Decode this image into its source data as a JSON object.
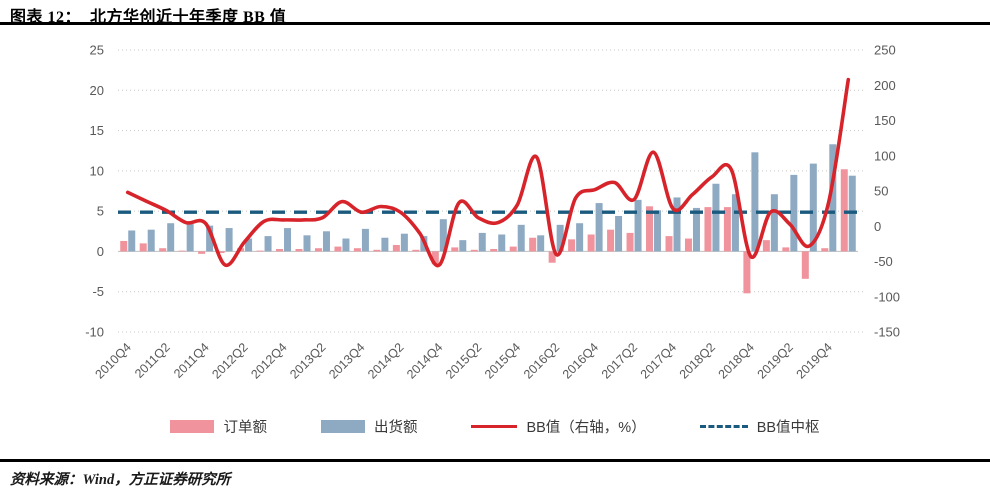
{
  "header": {
    "title": "图表 12：  北方华创近十年季度 BB 值"
  },
  "legend": {
    "items": [
      {
        "label": "订单额",
        "swatch": "bar",
        "color": "#f0939c"
      },
      {
        "label": "出货额",
        "swatch": "bar",
        "color": "#8ea9c2"
      },
      {
        "label": "BB值（右轴，%）",
        "swatch": "line",
        "color": "#d7242b"
      },
      {
        "label": "BB值中枢",
        "swatch": "dash",
        "color": "#1a5a7e"
      }
    ]
  },
  "footer": {
    "source": "资料来源：Wind，方正证券研究所"
  },
  "colors": {
    "order_bar": "#f0939c",
    "shipment_bar": "#8ea9c2",
    "bb_line": "#d7242b",
    "bb_center": "#1a5a7e",
    "axis_text": "#595959",
    "gridline": "#c8c8c8"
  },
  "chart_data": {
    "type": "bar+line combo, dual axis",
    "title": "北方华创近十年季度BB值",
    "categories": [
      "2010Q4",
      "2011Q1",
      "2011Q2",
      "2011Q3",
      "2011Q4",
      "2012Q1",
      "2012Q2",
      "2012Q3",
      "2012Q4",
      "2013Q1",
      "2013Q2",
      "2013Q3",
      "2013Q4",
      "2014Q1",
      "2014Q2",
      "2014Q3",
      "2014Q4",
      "2015Q1",
      "2015Q2",
      "2015Q3",
      "2015Q4",
      "2016Q1",
      "2016Q2",
      "2016Q3",
      "2016Q4",
      "2017Q1",
      "2017Q2",
      "2017Q3",
      "2017Q4",
      "2018Q1",
      "2018Q2",
      "2018Q3",
      "2018Q4",
      "2019Q1",
      "2019Q2",
      "2019Q3",
      "2019Q4",
      "2020Q1"
    ],
    "x_tick_labels": [
      "2010Q4",
      "2011Q2",
      "2011Q4",
      "2012Q2",
      "2012Q4",
      "2013Q2",
      "2013Q4",
      "2014Q2",
      "2014Q4",
      "2015Q2",
      "2015Q4",
      "2016Q2",
      "2016Q4",
      "2017Q2",
      "2017Q4",
      "2018Q2",
      "2018Q4",
      "2019Q2",
      "2019Q4"
    ],
    "left_axis": {
      "min": -10,
      "max": 25,
      "ticks": [
        25,
        20,
        15,
        10,
        5,
        0,
        -5,
        -10
      ]
    },
    "right_axis": {
      "min": -150,
      "max": 250,
      "ticks": [
        250,
        200,
        150,
        100,
        50,
        0,
        -50,
        -100,
        -150
      ]
    },
    "grid": "horizontal dotted",
    "legend_position": "bottom",
    "series": [
      {
        "name": "订单额",
        "type": "bar",
        "axis": "left",
        "color": "#f0939c",
        "values": [
          1.3,
          1.0,
          0.4,
          0.1,
          -0.3,
          -0.2,
          0.4,
          0.1,
          0.3,
          0.3,
          0.4,
          0.6,
          0.4,
          0.2,
          0.8,
          0.2,
          -1.6,
          0.5,
          0.2,
          0.3,
          0.6,
          1.7,
          -1.4,
          1.5,
          2.1,
          2.7,
          2.3,
          5.6,
          1.9,
          1.6,
          5.5,
          5.5,
          -5.2,
          1.4,
          0.5,
          -3.4,
          0.4,
          10.2
        ]
      },
      {
        "name": "出货额",
        "type": "bar",
        "axis": "left",
        "color": "#8ea9c2",
        "values": [
          2.6,
          2.7,
          3.5,
          3.4,
          3.2,
          2.9,
          1.6,
          1.9,
          2.9,
          2.0,
          2.5,
          1.6,
          2.8,
          1.7,
          2.2,
          1.9,
          4.0,
          1.4,
          2.3,
          2.1,
          3.3,
          2.0,
          3.3,
          3.5,
          6.0,
          4.4,
          6.4,
          5.1,
          6.7,
          5.4,
          8.4,
          7.1,
          12.3,
          7.1,
          9.5,
          10.9,
          13.3,
          9.4
        ]
      },
      {
        "name": "BB值（右轴，%）",
        "type": "line",
        "axis": "right",
        "color": "#d7242b",
        "values": [
          48,
          35,
          22,
          5,
          4,
          -55,
          -22,
          7,
          9,
          9,
          12,
          35,
          20,
          28,
          20,
          -10,
          -55,
          33,
          12,
          5,
          30,
          98,
          -40,
          40,
          52,
          62,
          38,
          105,
          25,
          45,
          70,
          80,
          -43,
          20,
          3,
          -28,
          35,
          208
        ]
      },
      {
        "name": "BB值中枢",
        "type": "dashed-constant-line",
        "axis": "right",
        "constant": 20,
        "color": "#1a5a7e"
      }
    ]
  }
}
